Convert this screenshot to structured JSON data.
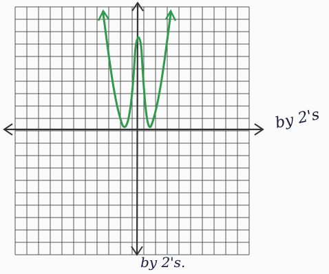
{
  "annotations": {
    "x_axis_note": "by 2's",
    "y_axis_note": "by 2's."
  }
}
